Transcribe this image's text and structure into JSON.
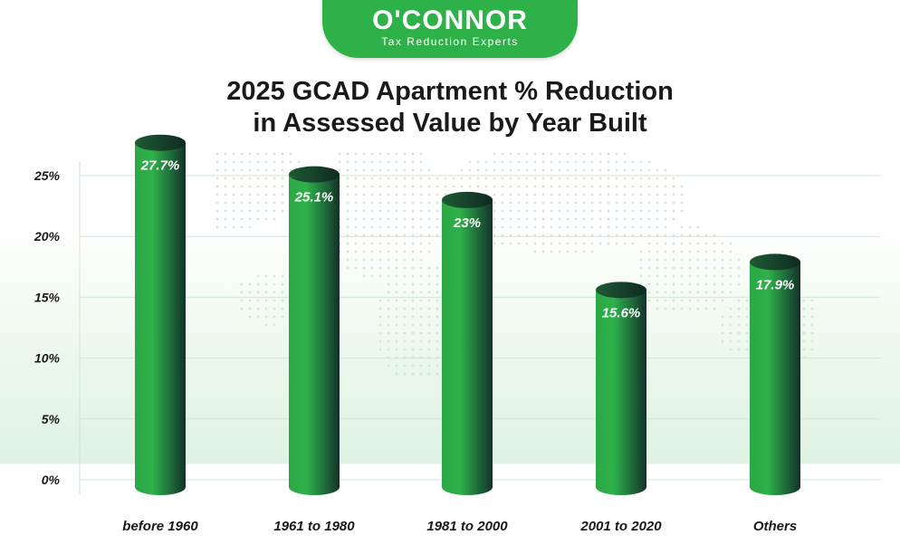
{
  "brand": {
    "name": "O'CONNOR",
    "tagline": "Tax Reduction Experts",
    "color": "#2fb14a"
  },
  "chart_data": {
    "type": "bar",
    "title_lines": [
      "2025 GCAD Apartment % Reduction",
      "in Assessed Value by Year Built"
    ],
    "categories": [
      "before 1960",
      "1961 to 1980",
      "1981 to 2000",
      "2001 to 2020",
      "Others"
    ],
    "values": [
      27.7,
      25.1,
      23,
      15.6,
      17.9
    ],
    "value_labels": [
      "27.7%",
      "25.1%",
      "23%",
      "15.6%",
      "17.9%"
    ],
    "y_ticks": [
      0,
      5,
      10,
      15,
      20,
      25
    ],
    "y_tick_labels": [
      "0%",
      "5%",
      "10%",
      "15%",
      "20%",
      "25%"
    ],
    "xlabel": "",
    "ylabel": "",
    "ylim": [
      0,
      25
    ],
    "grid": true,
    "bar_style": "cylinder",
    "bar_color_light": "#2fb14a",
    "bar_color_dark": "#13302a"
  }
}
